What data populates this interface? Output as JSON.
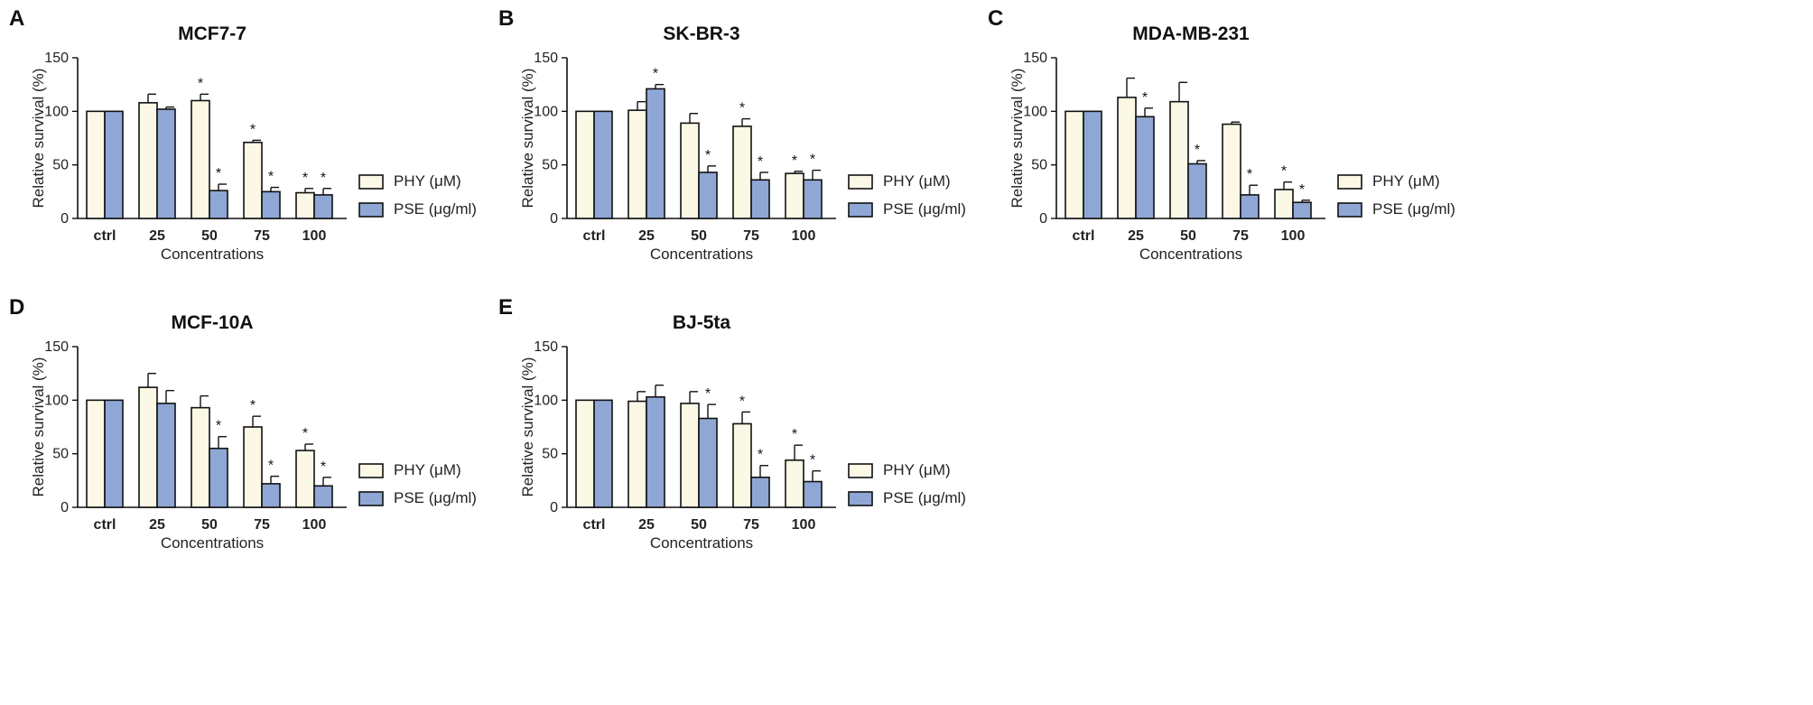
{
  "colors": {
    "phy": "#fbf8e6",
    "pse": "#8fa7d4",
    "stroke": "#111111"
  },
  "chart_data": [
    {
      "id": "A",
      "type": "bar",
      "title": "MCF7-7",
      "xlabel": "Concentrations",
      "ylabel": "Relative survival (%)",
      "ylim": [
        0,
        150
      ],
      "yticks": [
        0,
        50,
        100,
        150
      ],
      "categories": [
        "ctrl",
        "25",
        "50",
        "75",
        "100"
      ],
      "legend": [
        "PHY (μM)",
        "PSE (μg/ml)"
      ],
      "series": [
        {
          "name": "PHY (μM)",
          "values": [
            100,
            108,
            110,
            71,
            24
          ],
          "errors": [
            0,
            8,
            6,
            2,
            4
          ],
          "significant": [
            false,
            false,
            true,
            true,
            true
          ]
        },
        {
          "name": "PSE (μg/ml)",
          "values": [
            100,
            102,
            26,
            25,
            22
          ],
          "errors": [
            0,
            2,
            6,
            4,
            6
          ],
          "significant": [
            false,
            false,
            true,
            true,
            true
          ]
        }
      ]
    },
    {
      "id": "B",
      "type": "bar",
      "title": "SK-BR-3",
      "xlabel": "Concentrations",
      "ylabel": "Relative survival (%)",
      "ylim": [
        0,
        150
      ],
      "yticks": [
        0,
        50,
        100,
        150
      ],
      "categories": [
        "ctrl",
        "25",
        "50",
        "75",
        "100"
      ],
      "legend": [
        "PHY (μM)",
        "PSE (μg/ml)"
      ],
      "series": [
        {
          "name": "PHY (μM)",
          "values": [
            100,
            101,
            89,
            86,
            42
          ],
          "errors": [
            0,
            8,
            9,
            7,
            2
          ],
          "significant": [
            false,
            false,
            false,
            true,
            true
          ]
        },
        {
          "name": "PSE (μg/ml)",
          "values": [
            100,
            121,
            43,
            36,
            36
          ],
          "errors": [
            0,
            4,
            6,
            7,
            9
          ],
          "significant": [
            false,
            true,
            true,
            true,
            true
          ]
        }
      ]
    },
    {
      "id": "C",
      "type": "bar",
      "title": "MDA-MB-231",
      "xlabel": "Concentrations",
      "ylabel": "Relative survival (%)",
      "ylim": [
        0,
        150
      ],
      "yticks": [
        0,
        50,
        100,
        150
      ],
      "categories": [
        "ctrl",
        "25",
        "50",
        "75",
        "100"
      ],
      "legend": [
        "PHY (μM)",
        "PSE (μg/ml)"
      ],
      "series": [
        {
          "name": "PHY (μM)",
          "values": [
            100,
            113,
            109,
            88,
            27
          ],
          "errors": [
            0,
            18,
            18,
            2,
            7
          ],
          "significant": [
            false,
            false,
            false,
            false,
            true
          ]
        },
        {
          "name": "PSE (μg/ml)",
          "values": [
            100,
            95,
            51,
            22,
            15
          ],
          "errors": [
            0,
            8,
            3,
            9,
            2
          ],
          "significant": [
            false,
            true,
            true,
            true,
            true
          ]
        }
      ]
    },
    {
      "id": "D",
      "type": "bar",
      "title": "MCF-10A",
      "xlabel": "Concentrations",
      "ylabel": "Relative survival (%)",
      "ylim": [
        0,
        150
      ],
      "yticks": [
        0,
        50,
        100,
        150
      ],
      "categories": [
        "ctrl",
        "25",
        "50",
        "75",
        "100"
      ],
      "legend": [
        "PHY (μM)",
        "PSE (μg/ml)"
      ],
      "series": [
        {
          "name": "PHY (μM)",
          "values": [
            100,
            112,
            93,
            75,
            53
          ],
          "errors": [
            0,
            13,
            11,
            10,
            6
          ],
          "significant": [
            false,
            false,
            false,
            true,
            true
          ]
        },
        {
          "name": "PSE (μg/ml)",
          "values": [
            100,
            97,
            55,
            22,
            20
          ],
          "errors": [
            0,
            12,
            11,
            7,
            8
          ],
          "significant": [
            false,
            false,
            true,
            true,
            true
          ]
        }
      ]
    },
    {
      "id": "E",
      "type": "bar",
      "title": "BJ-5ta",
      "xlabel": "Concentrations",
      "ylabel": "Relative survival (%)",
      "ylim": [
        0,
        150
      ],
      "yticks": [
        0,
        50,
        100,
        150
      ],
      "categories": [
        "ctrl",
        "25",
        "50",
        "75",
        "100"
      ],
      "legend": [
        "PHY (μM)",
        "PSE (μg/ml)"
      ],
      "series": [
        {
          "name": "PHY (μM)",
          "values": [
            100,
            99,
            97,
            78,
            44
          ],
          "errors": [
            0,
            9,
            11,
            11,
            14
          ],
          "significant": [
            false,
            false,
            false,
            true,
            true
          ]
        },
        {
          "name": "PSE (μg/ml)",
          "values": [
            100,
            103,
            83,
            28,
            24
          ],
          "errors": [
            0,
            11,
            13,
            11,
            10
          ],
          "significant": [
            false,
            false,
            true,
            true,
            true
          ]
        }
      ]
    }
  ]
}
